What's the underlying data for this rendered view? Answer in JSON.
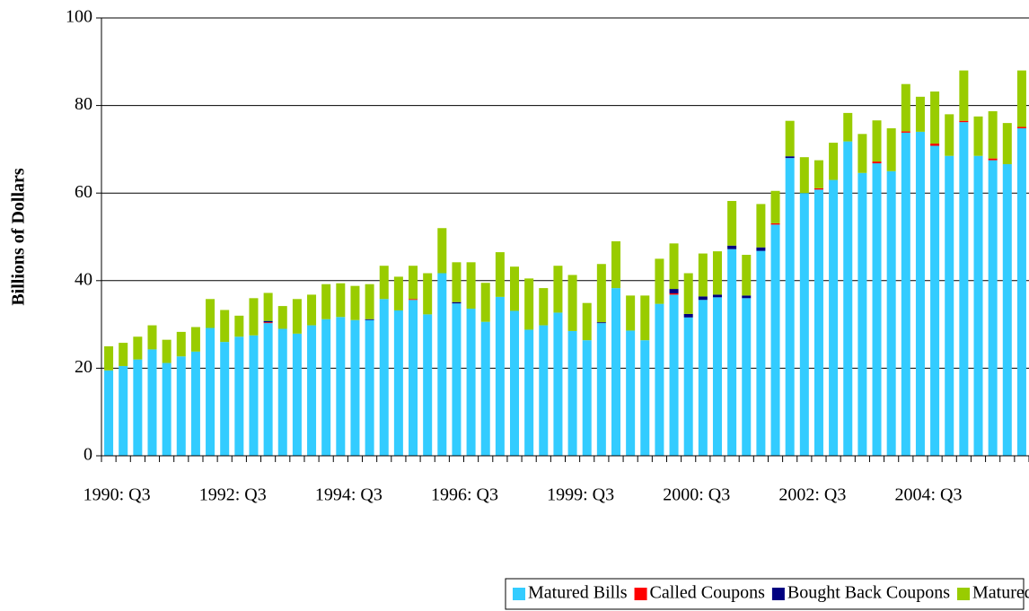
{
  "chart_data": {
    "type": "stacked_bar",
    "ylabel": "Billions of Dollars",
    "categories": [
      "1990: Q3",
      null,
      null,
      null,
      null,
      null,
      null,
      null,
      "1992: Q3",
      null,
      null,
      null,
      null,
      null,
      null,
      null,
      "1994: Q3",
      null,
      null,
      null,
      null,
      null,
      null,
      null,
      "1996: Q3",
      null,
      null,
      null,
      null,
      null,
      null,
      null,
      "1999: Q3",
      null,
      null,
      null,
      null,
      null,
      null,
      null,
      "2000: Q3",
      null,
      null,
      null,
      null,
      null,
      null,
      null,
      "2002: Q3",
      null,
      null,
      null,
      null,
      null,
      null,
      null,
      "2004: Q3",
      null,
      null,
      null,
      null,
      null,
      null,
      null
    ],
    "series": [
      {
        "name": "Matured Bills",
        "color": "#33ccff",
        "values": [
          19.5,
          20.5,
          22,
          24.3,
          21.2,
          22.7,
          23.8,
          29.2,
          26,
          27.2,
          27.5,
          30.3,
          29,
          27.9,
          29.8,
          31.2,
          31.7,
          31,
          31,
          35.8,
          33.2,
          35.6,
          32.3,
          41.7,
          34.8,
          33.6,
          30.6,
          36.3,
          33.1,
          28.8,
          29.8,
          32.7,
          28.5,
          26.4,
          30.3,
          38.3,
          28.6,
          26.4,
          34.7,
          36.8,
          31.6,
          35.6,
          36.2,
          47.2,
          36,
          46.8,
          52.8,
          68,
          60,
          60.8,
          63,
          71.8,
          64.6,
          66.8,
          65,
          73.8,
          74,
          70.8,
          68.5,
          76.2,
          68.5,
          67.5,
          66.6,
          74.8
        ]
      },
      {
        "name": "Called Coupons",
        "color": "#ff0000",
        "values": [
          0,
          0,
          0,
          0,
          0,
          0,
          0,
          0,
          0,
          0,
          0,
          0.2,
          0,
          0,
          0,
          0,
          0,
          0,
          0,
          0,
          0,
          0.2,
          0,
          0,
          0,
          0,
          0,
          0,
          0,
          0,
          0,
          0,
          0,
          0,
          0,
          0,
          0,
          0,
          0,
          0.3,
          0,
          0,
          0,
          0,
          0,
          0,
          0.3,
          0,
          0,
          0.3,
          0,
          0,
          0,
          0.4,
          0,
          0.3,
          0,
          0.5,
          0,
          0.3,
          0,
          0.4,
          0,
          0.3
        ]
      },
      {
        "name": "Bought Back Coupons",
        "color": "#000080",
        "values": [
          0,
          0,
          0,
          0,
          0,
          0,
          0,
          0,
          0,
          0,
          0,
          0.3,
          0,
          0,
          0,
          0,
          0,
          0,
          0.2,
          0,
          0,
          0,
          0,
          0,
          0.3,
          0,
          0,
          0,
          0,
          0,
          0,
          0,
          0,
          0,
          0.2,
          0,
          0,
          0,
          0,
          1.0,
          0.8,
          0.8,
          0.6,
          0.8,
          0.6,
          0.8,
          0,
          0.4,
          0,
          0,
          0,
          0,
          0,
          0,
          0,
          0,
          0,
          0,
          0,
          0,
          0,
          0,
          0,
          0
        ]
      },
      {
        "name": "Matured Coupons",
        "color": "#99cc00",
        "values": [
          5.5,
          5.3,
          5.2,
          5.5,
          5.3,
          5.6,
          5.6,
          6.6,
          7.3,
          4.8,
          8.5,
          6.4,
          5.2,
          7.9,
          7.0,
          8.0,
          7.7,
          7.8,
          8.0,
          7.6,
          7.7,
          7.6,
          9.4,
          10.3,
          9.1,
          10.6,
          8.9,
          10.2,
          10.1,
          11.7,
          8.5,
          10.7,
          12.8,
          8.5,
          13.3,
          10.7,
          8.0,
          10.2,
          10.3,
          10.4,
          9.3,
          9.8,
          9.9,
          10.2,
          9.3,
          9.9,
          7.4,
          8.1,
          8.2,
          6.4,
          8.5,
          6.5,
          8.9,
          9.4,
          9.8,
          10.8,
          8.0,
          11.9,
          9.5,
          11.5,
          9.0,
          10.8,
          9.4,
          12.9
        ]
      }
    ],
    "ylim": [
      0,
      100
    ],
    "yticks": [
      0,
      20,
      40,
      60,
      80,
      100
    ],
    "grid": true,
    "legend": "bottom-right"
  }
}
